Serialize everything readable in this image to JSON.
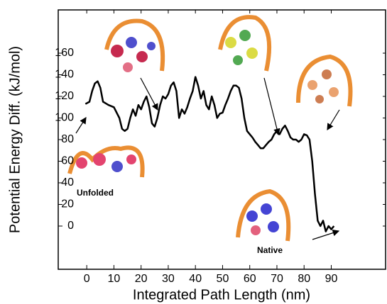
{
  "chart_data": {
    "type": "line",
    "x_label": "Integrated Path Length (nm)",
    "y_label": "Potential Energy Diff. (kJ/mol)",
    "annotations": [
      "Unfolded",
      "Native"
    ],
    "color": "#000000",
    "x": [
      -0.5,
      1,
      2,
      3,
      4,
      5,
      6,
      8,
      10,
      12,
      13,
      14,
      15,
      16,
      17,
      18,
      19,
      20,
      21,
      22,
      23,
      24,
      25,
      26,
      27,
      28,
      29,
      30,
      31,
      32,
      33,
      34,
      35,
      36,
      37,
      38,
      39,
      40,
      41,
      42,
      43,
      44,
      45,
      46,
      47,
      48,
      49,
      50,
      51,
      52,
      53,
      54,
      55,
      56,
      57,
      58,
      59,
      60,
      61,
      62,
      63,
      64,
      65,
      66,
      67,
      68,
      69,
      70,
      71,
      72,
      73,
      74,
      75,
      76,
      77,
      78,
      79,
      80,
      81,
      82,
      83,
      84,
      85,
      86,
      87,
      88,
      89,
      90,
      91
    ],
    "values": [
      113,
      115,
      125,
      132,
      134,
      128,
      115,
      112,
      110,
      100,
      90,
      88,
      90,
      100,
      108,
      102,
      112,
      108,
      115,
      120,
      110,
      95,
      92,
      100,
      112,
      120,
      118,
      122,
      130,
      133,
      125,
      100,
      108,
      104,
      110,
      118,
      125,
      138,
      130,
      118,
      125,
      112,
      108,
      120,
      112,
      100,
      104,
      105,
      112,
      118,
      125,
      130,
      130,
      128,
      118,
      100,
      88,
      85,
      82,
      78,
      75,
      72,
      72,
      75,
      78,
      80,
      85,
      88,
      85,
      90,
      93,
      88,
      82,
      80,
      80,
      78,
      80,
      85,
      84,
      80,
      60,
      30,
      5,
      0,
      5,
      -5,
      0,
      -3,
      0
    ],
    "xlim": [
      -10.5,
      110
    ],
    "xticks": [
      0,
      10,
      20,
      30,
      40,
      50,
      60,
      70,
      80,
      90
    ],
    "ylim": [
      -40,
      200
    ],
    "yticks": [
      0,
      20,
      40,
      60,
      80,
      100,
      120,
      140,
      160
    ]
  }
}
